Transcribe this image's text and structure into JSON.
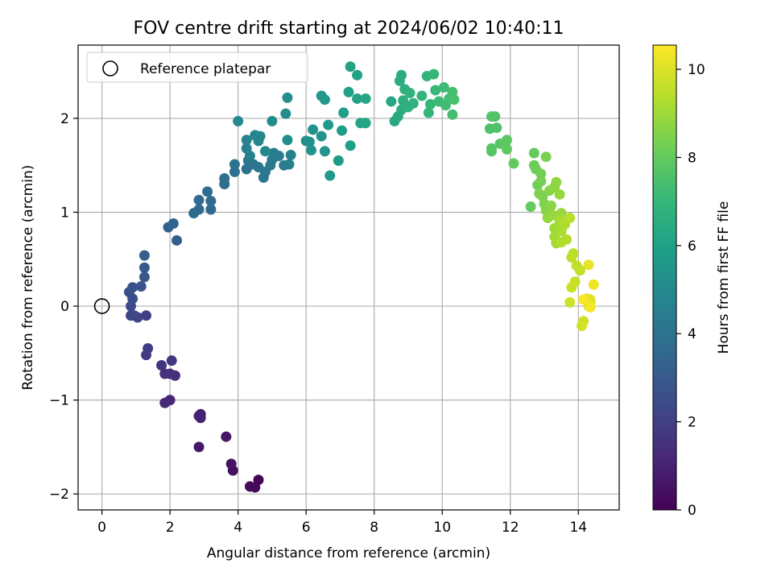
{
  "chart_data": {
    "type": "scatter",
    "title": "FOV centre drift starting at 2024/06/02 10:40:11",
    "xlabel": "Angular distance from reference (arcmin)",
    "ylabel": "Rotation from reference (arcmin)",
    "xlim": [
      -0.7,
      15.2
    ],
    "ylim": [
      -2.17,
      2.78
    ],
    "xticks": [
      0,
      2,
      4,
      6,
      8,
      10,
      12,
      14
    ],
    "yticks": [
      -2,
      -1,
      0,
      1,
      2
    ],
    "xtick_labels": [
      "0",
      "2",
      "4",
      "6",
      "8",
      "10",
      "12",
      "14"
    ],
    "ytick_labels": [
      "−2",
      "−1",
      "0",
      "1",
      "2"
    ],
    "grid": true,
    "legend": {
      "position": "top-left",
      "entries": [
        "Reference platepar"
      ]
    },
    "reference_point": {
      "x": 0,
      "y": 0,
      "label": "Reference platepar"
    },
    "colorbar": {
      "label": "Hours from first FF file",
      "colormap": "viridis",
      "range": [
        0,
        10.55
      ],
      "ticks": [
        0,
        2,
        4,
        6,
        8,
        10
      ],
      "tick_labels": [
        "0",
        "2",
        "4",
        "6",
        "8",
        "10"
      ],
      "colors": [
        "#440154",
        "#482878",
        "#3e4989",
        "#31688e",
        "#26828e",
        "#1f9e89",
        "#35b779",
        "#6ece58",
        "#b5de2b",
        "#fde725"
      ]
    },
    "points": [
      [
        4.6,
        -1.85,
        0.1
      ],
      [
        4.5,
        -1.93,
        0.2
      ],
      [
        4.35,
        -1.92,
        0.3
      ],
      [
        3.85,
        -1.75,
        0.4
      ],
      [
        3.8,
        -1.68,
        0.5
      ],
      [
        3.65,
        -1.39,
        0.6
      ],
      [
        2.85,
        -1.5,
        0.7
      ],
      [
        2.85,
        -1.17,
        0.8
      ],
      [
        2.9,
        -1.15,
        0.9
      ],
      [
        2.9,
        -1.19,
        1.0
      ],
      [
        2.0,
        -1.0,
        1.1
      ],
      [
        1.85,
        -1.03,
        1.2
      ],
      [
        2.15,
        -0.74,
        1.3
      ],
      [
        2.0,
        -0.72,
        1.4
      ],
      [
        1.85,
        -0.72,
        1.5
      ],
      [
        1.75,
        -0.63,
        1.6
      ],
      [
        2.05,
        -0.58,
        1.7
      ],
      [
        1.3,
        -0.52,
        1.8
      ],
      [
        1.35,
        -0.45,
        1.9
      ],
      [
        1.3,
        -0.1,
        2.0
      ],
      [
        1.05,
        -0.12,
        2.1
      ],
      [
        0.85,
        -0.1,
        2.2
      ],
      [
        0.95,
        -0.1,
        2.3
      ],
      [
        0.85,
        0.0,
        2.4
      ],
      [
        0.9,
        0.08,
        2.5
      ],
      [
        0.8,
        0.15,
        2.6
      ],
      [
        0.9,
        0.2,
        2.7
      ],
      [
        1.15,
        0.21,
        2.8
      ],
      [
        1.25,
        0.31,
        2.9
      ],
      [
        1.25,
        0.41,
        3.0
      ],
      [
        1.25,
        0.54,
        3.1
      ],
      [
        2.2,
        0.7,
        3.2
      ],
      [
        1.95,
        0.84,
        3.3
      ],
      [
        2.1,
        0.88,
        3.4
      ],
      [
        2.7,
        0.99,
        3.5
      ],
      [
        2.85,
        1.03,
        3.55
      ],
      [
        2.85,
        1.13,
        3.6
      ],
      [
        3.2,
        1.03,
        3.65
      ],
      [
        3.2,
        1.12,
        3.7
      ],
      [
        3.1,
        1.22,
        3.75
      ],
      [
        3.6,
        1.3,
        3.8
      ],
      [
        3.6,
        1.36,
        3.85
      ],
      [
        3.9,
        1.43,
        3.9
      ],
      [
        3.9,
        1.51,
        3.95
      ],
      [
        4.25,
        1.46,
        4.0
      ],
      [
        4.3,
        1.55,
        4.05
      ],
      [
        4.45,
        1.51,
        4.1
      ],
      [
        4.6,
        1.48,
        4.15
      ],
      [
        4.8,
        1.43,
        4.2
      ],
      [
        4.75,
        1.37,
        4.25
      ],
      [
        4.95,
        1.5,
        4.3
      ],
      [
        5.0,
        1.56,
        4.35
      ],
      [
        5.05,
        1.63,
        4.4
      ],
      [
        5.2,
        1.6,
        4.45
      ],
      [
        5.35,
        1.5,
        4.5
      ],
      [
        5.5,
        1.51,
        4.55
      ],
      [
        5.55,
        1.61,
        4.6
      ],
      [
        4.35,
        1.6,
        4.65
      ],
      [
        4.25,
        1.68,
        4.7
      ],
      [
        4.25,
        1.77,
        4.75
      ],
      [
        4.5,
        1.82,
        4.8
      ],
      [
        4.6,
        1.76,
        4.85
      ],
      [
        4.65,
        1.81,
        4.9
      ],
      [
        4.0,
        1.97,
        4.95
      ],
      [
        4.8,
        1.65,
        5.0
      ],
      [
        5.0,
        1.97,
        5.05
      ],
      [
        5.4,
        2.05,
        5.1
      ],
      [
        5.45,
        1.77,
        5.15
      ],
      [
        5.45,
        2.22,
        5.2
      ],
      [
        6.0,
        1.76,
        5.25
      ],
      [
        6.1,
        1.75,
        5.3
      ],
      [
        6.15,
        1.66,
        5.35
      ],
      [
        6.2,
        1.88,
        5.4
      ],
      [
        6.55,
        1.65,
        5.45
      ],
      [
        6.45,
        1.81,
        5.5
      ],
      [
        6.45,
        2.24,
        5.55
      ],
      [
        6.55,
        2.2,
        5.6
      ],
      [
        6.65,
        1.93,
        5.65
      ],
      [
        6.7,
        1.39,
        5.7
      ],
      [
        6.95,
        1.55,
        5.75
      ],
      [
        7.05,
        1.87,
        5.8
      ],
      [
        7.1,
        2.06,
        5.85
      ],
      [
        7.3,
        1.71,
        5.9
      ],
      [
        7.25,
        2.28,
        5.95
      ],
      [
        7.3,
        2.55,
        6.0
      ],
      [
        7.5,
        2.21,
        6.05
      ],
      [
        7.5,
        2.46,
        6.1
      ],
      [
        7.6,
        1.95,
        6.15
      ],
      [
        7.75,
        1.95,
        6.2
      ],
      [
        7.75,
        2.21,
        6.25
      ],
      [
        8.5,
        2.18,
        6.3
      ],
      [
        8.6,
        1.97,
        6.35
      ],
      [
        8.7,
        2.02,
        6.4
      ],
      [
        8.75,
        2.4,
        6.45
      ],
      [
        8.8,
        2.46,
        6.5
      ],
      [
        8.8,
        2.09,
        6.55
      ],
      [
        8.85,
        2.19,
        6.6
      ],
      [
        8.9,
        2.31,
        6.65
      ],
      [
        9.0,
        2.12,
        6.7
      ],
      [
        9.05,
        2.27,
        6.75
      ],
      [
        9.15,
        2.16,
        6.8
      ],
      [
        9.4,
        2.24,
        6.85
      ],
      [
        9.55,
        2.45,
        6.9
      ],
      [
        9.6,
        2.06,
        6.95
      ],
      [
        9.65,
        2.15,
        7.0
      ],
      [
        9.75,
        2.47,
        7.05
      ],
      [
        9.8,
        2.3,
        7.1
      ],
      [
        9.9,
        2.18,
        7.15
      ],
      [
        10.05,
        2.33,
        7.2
      ],
      [
        10.1,
        2.14,
        7.25
      ],
      [
        10.2,
        2.21,
        7.3
      ],
      [
        10.3,
        2.04,
        7.35
      ],
      [
        10.3,
        2.28,
        7.4
      ],
      [
        10.35,
        2.2,
        7.45
      ],
      [
        11.4,
        1.89,
        7.5
      ],
      [
        11.55,
        2.02,
        7.55
      ],
      [
        11.6,
        1.9,
        7.6
      ],
      [
        11.45,
        2.02,
        7.65
      ],
      [
        11.45,
        1.65,
        7.7
      ],
      [
        11.45,
        1.68,
        7.75
      ],
      [
        11.7,
        1.73,
        7.8
      ],
      [
        11.9,
        1.77,
        7.85
      ],
      [
        11.9,
        1.67,
        7.9
      ],
      [
        12.1,
        1.52,
        7.95
      ],
      [
        12.6,
        1.06,
        8.0
      ],
      [
        12.7,
        1.63,
        8.05
      ],
      [
        12.7,
        1.5,
        8.1
      ],
      [
        12.75,
        1.46,
        8.15
      ],
      [
        12.8,
        1.29,
        8.2
      ],
      [
        12.9,
        1.41,
        8.25
      ],
      [
        12.9,
        1.33,
        8.3
      ],
      [
        12.95,
        1.17,
        8.35
      ],
      [
        13.05,
        1.59,
        8.4
      ],
      [
        12.85,
        1.2,
        8.45
      ],
      [
        13.0,
        1.09,
        8.5
      ],
      [
        13.05,
        1.02,
        8.55
      ],
      [
        13.15,
        1.23,
        8.6
      ],
      [
        13.2,
        1.07,
        8.65
      ],
      [
        13.3,
        1.27,
        8.7
      ],
      [
        13.35,
        1.32,
        8.75
      ],
      [
        13.1,
        0.94,
        8.8
      ],
      [
        13.45,
        1.19,
        8.85
      ],
      [
        13.25,
        0.97,
        8.9
      ],
      [
        13.5,
        0.99,
        8.95
      ],
      [
        13.3,
        0.83,
        9.0
      ],
      [
        13.3,
        0.74,
        9.05
      ],
      [
        13.35,
        0.67,
        9.1
      ],
      [
        13.45,
        0.91,
        9.15
      ],
      [
        13.5,
        0.8,
        9.2
      ],
      [
        13.6,
        0.87,
        9.25
      ],
      [
        13.5,
        0.68,
        9.3
      ],
      [
        13.65,
        0.71,
        9.35
      ],
      [
        13.75,
        0.94,
        9.4
      ],
      [
        13.85,
        0.56,
        9.45
      ],
      [
        13.8,
        0.52,
        9.5
      ],
      [
        13.95,
        0.43,
        9.55
      ],
      [
        14.05,
        0.38,
        9.6
      ],
      [
        13.9,
        0.26,
        9.65
      ],
      [
        13.8,
        0.2,
        9.7
      ],
      [
        13.75,
        0.04,
        9.75
      ],
      [
        14.15,
        -0.16,
        9.8
      ],
      [
        14.1,
        -0.21,
        9.85
      ],
      [
        14.25,
        0.08,
        9.9
      ],
      [
        14.3,
        0.0,
        9.95
      ],
      [
        14.35,
        0.04,
        10.0
      ],
      [
        14.35,
        0.07,
        10.1
      ],
      [
        14.3,
        0.44,
        10.2
      ],
      [
        14.45,
        0.23,
        10.3
      ],
      [
        14.35,
        -0.01,
        10.4
      ],
      [
        14.15,
        0.07,
        10.5
      ]
    ]
  }
}
